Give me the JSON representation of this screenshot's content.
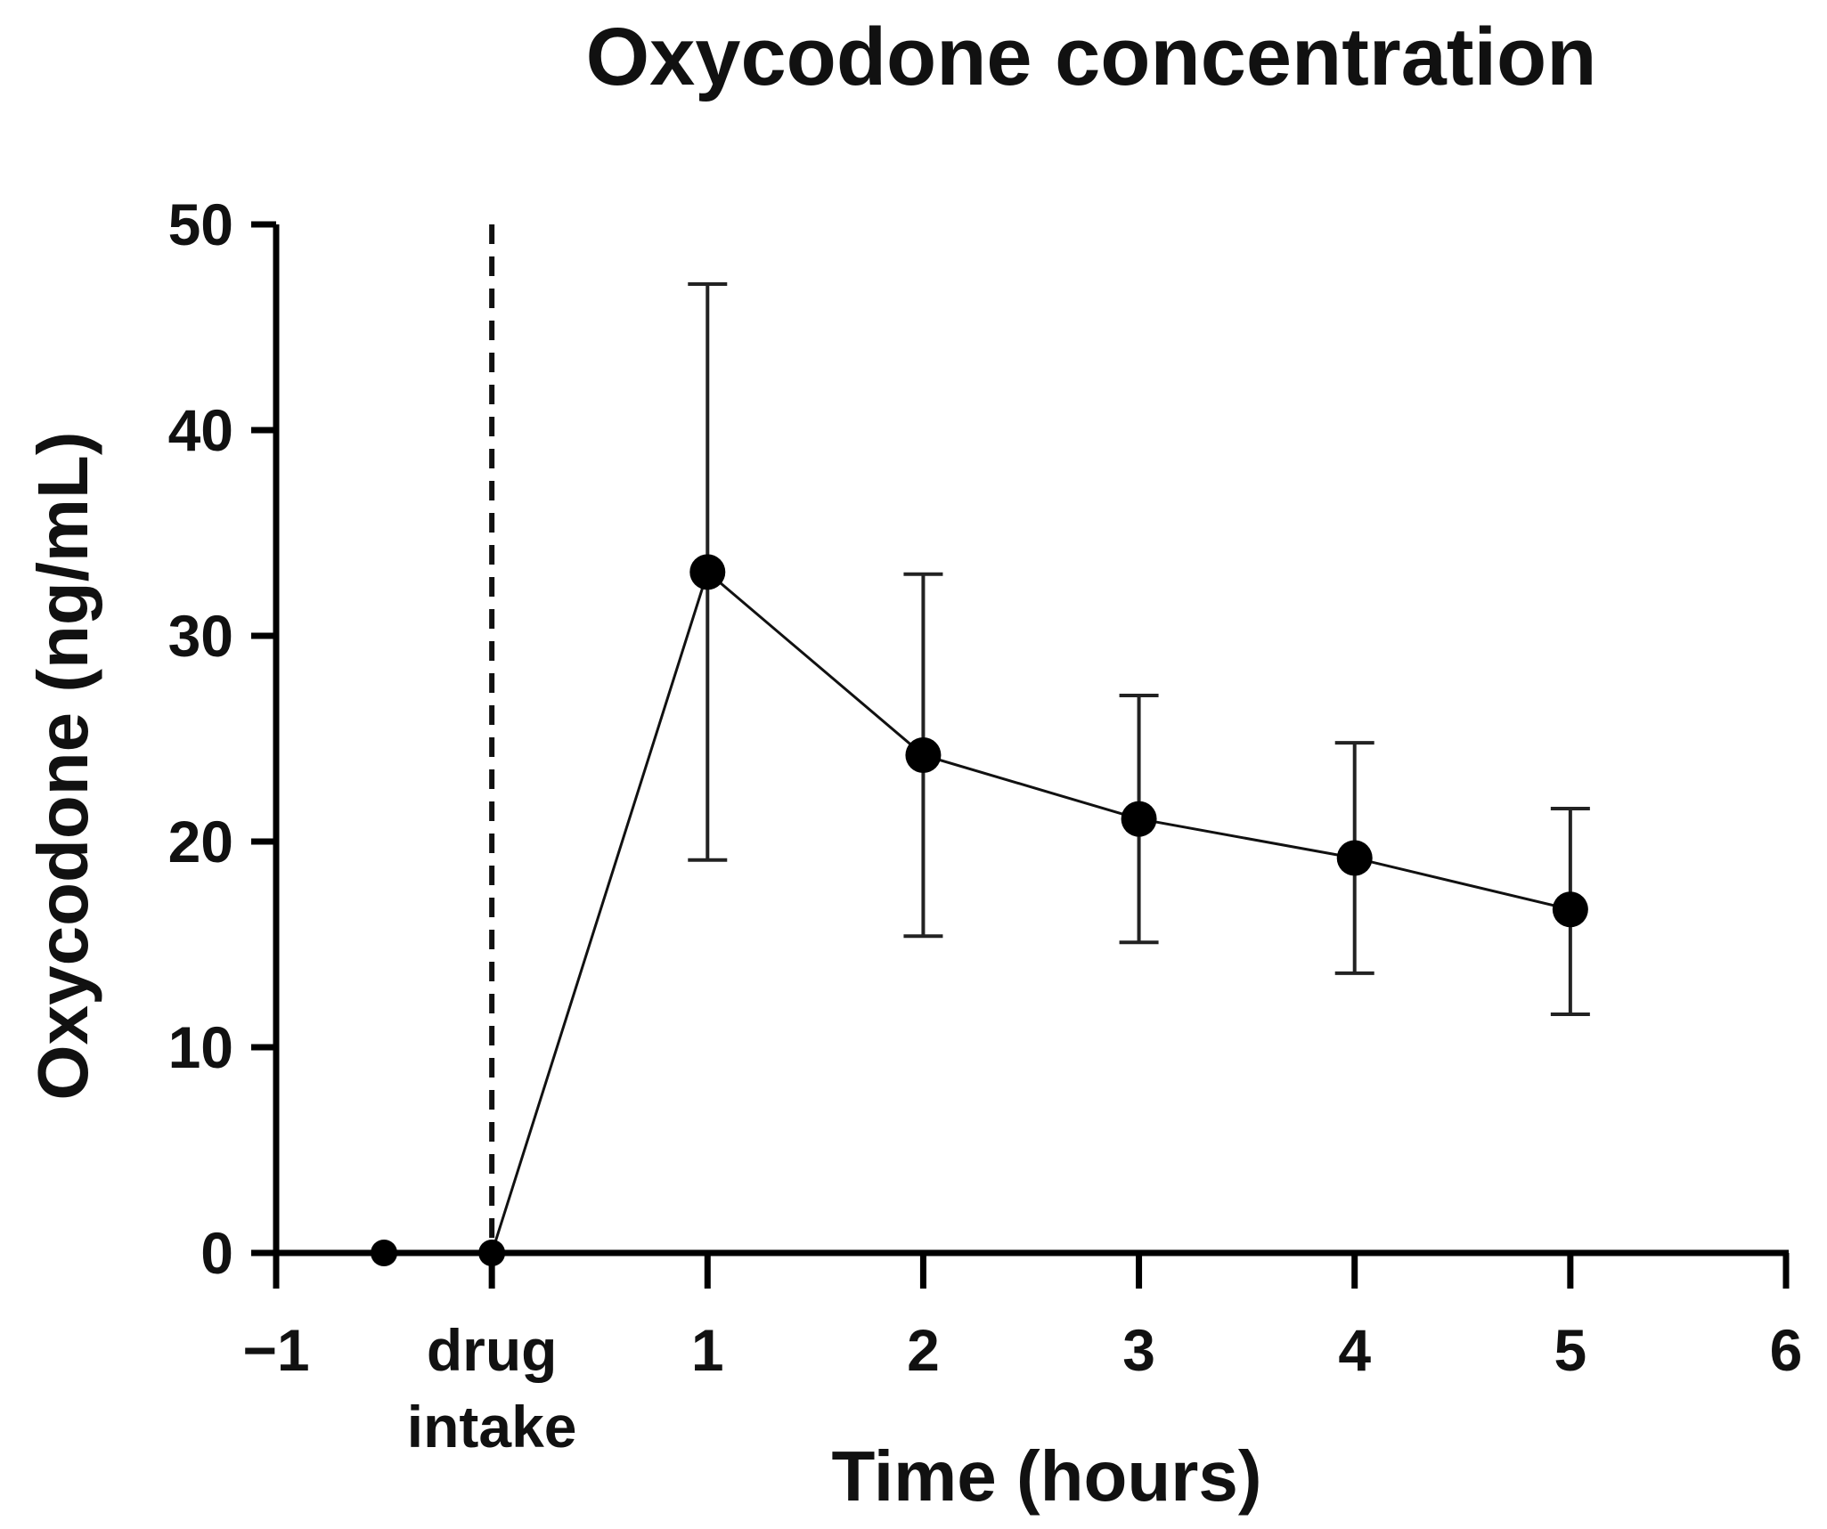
{
  "chart_data": {
    "type": "line",
    "title": "Oxycodone concentration",
    "xlabel": "Time (hours)",
    "ylabel": "Oxycodone (ng/mL)",
    "xlim": [
      -1,
      6
    ],
    "ylim": [
      0,
      50
    ],
    "x_ticks": [
      {
        "value": -1,
        "label": "−1"
      },
      {
        "value": 0,
        "label": "drug",
        "label2": "intake"
      },
      {
        "value": 1,
        "label": "1"
      },
      {
        "value": 2,
        "label": "2"
      },
      {
        "value": 3,
        "label": "3"
      },
      {
        "value": 4,
        "label": "4"
      },
      {
        "value": 5,
        "label": "5"
      },
      {
        "value": 6,
        "label": "6"
      }
    ],
    "y_ticks": [
      {
        "value": 0,
        "label": "0"
      },
      {
        "value": 10,
        "label": "10"
      },
      {
        "value": 20,
        "label": "20"
      },
      {
        "value": 30,
        "label": "30"
      },
      {
        "value": 40,
        "label": "40"
      },
      {
        "value": 50,
        "label": "50"
      }
    ],
    "series": [
      {
        "points": [
          {
            "x": -0.5,
            "y": 0
          },
          {
            "x": 0,
            "y": 0
          },
          {
            "x": 1,
            "y": 33.1,
            "err_low": 19.1,
            "err_high": 47.1
          },
          {
            "x": 2,
            "y": 24.2,
            "err_low": 15.4,
            "err_high": 33.0
          },
          {
            "x": 3,
            "y": 21.1,
            "err_low": 15.1,
            "err_high": 27.1
          },
          {
            "x": 4,
            "y": 19.2,
            "err_low": 13.6,
            "err_high": 24.8
          },
          {
            "x": 5,
            "y": 16.7,
            "err_low": 11.6,
            "err_high": 21.6
          }
        ]
      }
    ],
    "annotations": [
      {
        "type": "vertical-dashed-line",
        "x": 0
      }
    ],
    "grid": false,
    "line_color": "#111111",
    "marker_color": "#000000"
  }
}
